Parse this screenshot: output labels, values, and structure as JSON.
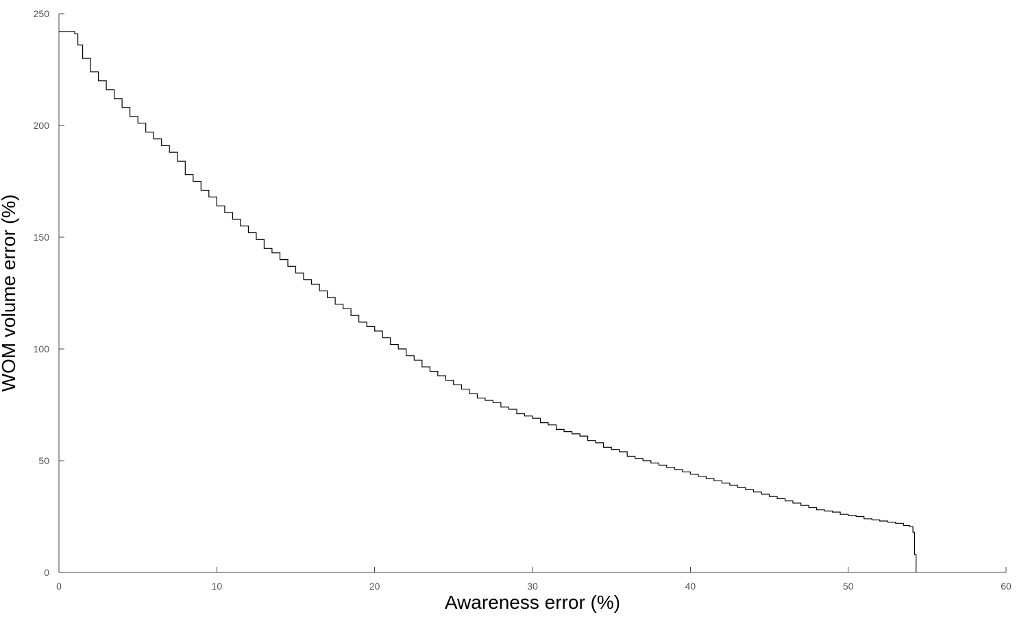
{
  "chart_data": {
    "type": "line",
    "title": "",
    "xlabel": "Awareness error (%)",
    "ylabel": "WOM volume error (%)",
    "xlim": [
      0,
      60
    ],
    "ylim": [
      0,
      250
    ],
    "xticks": [
      0,
      10,
      20,
      30,
      40,
      50,
      60
    ],
    "yticks": [
      0,
      50,
      100,
      150,
      200,
      250
    ],
    "grid": false,
    "legend": "none",
    "step": true,
    "colors": {
      "series": "#000000",
      "axis": "#444444",
      "tick_text": "#555555"
    },
    "series": [
      {
        "x": [
          0,
          0.5,
          0.9,
          1.0,
          1.2,
          1.5,
          2.0,
          2.5,
          3.0,
          3.5,
          4.0,
          4.5,
          5.0,
          5.5,
          6.0,
          6.5,
          7.0,
          7.5,
          8.0,
          8.5,
          9.0,
          9.5,
          10.0,
          10.5,
          11.0,
          11.5,
          12.0,
          12.5,
          13.0,
          13.5,
          14.0,
          14.5,
          15.0,
          15.5,
          16.0,
          16.5,
          17.0,
          17.5,
          18.0,
          18.5,
          19.0,
          19.5,
          20.0,
          20.5,
          21.0,
          21.5,
          22.0,
          22.5,
          23.0,
          23.5,
          24.0,
          24.5,
          25.0,
          25.5,
          26.0,
          26.5,
          27.0,
          27.5,
          28.0,
          28.5,
          29.0,
          29.5,
          30.0,
          30.5,
          31.0,
          31.5,
          32.0,
          32.5,
          33.0,
          33.5,
          34.0,
          34.5,
          35.0,
          35.5,
          36.0,
          36.5,
          37.0,
          37.5,
          38.0,
          38.5,
          39.0,
          39.5,
          40.0,
          40.5,
          41.0,
          41.5,
          42.0,
          42.5,
          43.0,
          43.5,
          44.0,
          44.5,
          45.0,
          45.5,
          46.0,
          46.5,
          47.0,
          47.5,
          48.0,
          48.5,
          49.0,
          49.5,
          50.0,
          50.5,
          51.0,
          51.5,
          52.0,
          52.5,
          53.0,
          53.5,
          53.9,
          54.1,
          54.2,
          54.3
        ],
        "y": [
          242,
          242,
          242,
          241,
          236,
          230,
          224,
          220,
          216,
          212,
          208,
          204,
          201,
          197,
          194,
          191,
          188,
          184,
          178,
          175,
          171,
          168,
          164,
          161,
          158,
          155,
          152,
          149,
          145,
          143,
          140,
          137,
          134,
          131,
          129,
          126,
          123,
          120,
          118,
          115,
          112,
          110,
          108,
          105,
          102,
          100,
          97,
          95,
          92,
          90,
          88,
          86,
          84,
          82,
          80,
          78,
          77,
          76,
          74,
          73,
          71,
          70,
          69,
          67,
          66,
          64,
          63,
          62,
          61,
          59,
          58,
          56,
          55,
          54,
          52,
          51,
          50,
          49,
          48,
          47,
          46,
          45,
          44,
          43,
          42,
          41,
          40,
          39,
          38,
          37,
          36,
          35,
          34,
          33,
          32,
          31,
          30,
          29,
          28,
          27.5,
          27,
          26,
          25.5,
          25,
          24,
          23.5,
          23,
          22.5,
          22,
          21,
          20.5,
          18,
          8,
          0
        ]
      }
    ]
  }
}
